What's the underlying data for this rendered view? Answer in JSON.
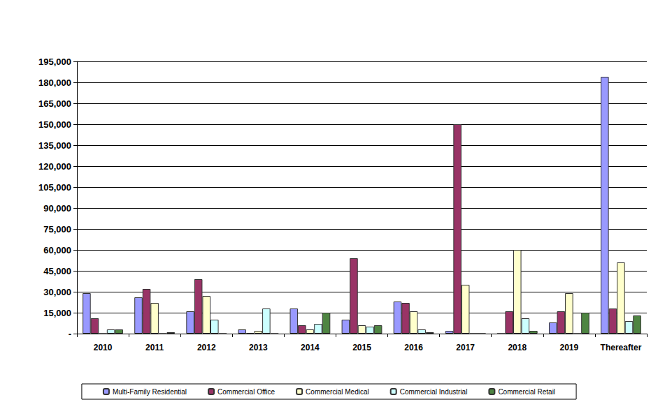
{
  "chart_data": {
    "type": "bar",
    "categories": [
      "2010",
      "2011",
      "2012",
      "2013",
      "2014",
      "2015",
      "2016",
      "2017",
      "2018",
      "2019",
      "Thereafter"
    ],
    "series": [
      {
        "name": "Multi-Family Residential",
        "color": "#9999ff",
        "values": [
          29000,
          26000,
          16000,
          3000,
          18000,
          10000,
          23000,
          2000,
          0,
          8000,
          184000
        ]
      },
      {
        "name": "Commercial Office",
        "color": "#993366",
        "values": [
          11000,
          32000,
          39000,
          500,
          6000,
          54000,
          22000,
          150000,
          16000,
          16000,
          18000
        ]
      },
      {
        "name": "Commercial Medical",
        "color": "#ffffcc",
        "values": [
          0,
          22000,
          27000,
          2000,
          3000,
          6000,
          16000,
          35000,
          60000,
          29000,
          51000
        ]
      },
      {
        "name": "Commercial Industrial",
        "color": "#ccffff",
        "values": [
          3000,
          0,
          10000,
          18000,
          7000,
          5000,
          3000,
          0,
          11000,
          0,
          9000
        ]
      },
      {
        "name": "Commercial Retail",
        "color": "#4e8542",
        "values": [
          3000,
          1000,
          0,
          0,
          15000,
          6000,
          1000,
          0,
          2000,
          15000,
          13000
        ]
      }
    ],
    "ylim": [
      0,
      195000
    ],
    "yticks": [
      {
        "value": 0,
        "label": "-"
      },
      {
        "value": 15000,
        "label": "15,000"
      },
      {
        "value": 30000,
        "label": "30,000"
      },
      {
        "value": 45000,
        "label": "45,000"
      },
      {
        "value": 60000,
        "label": "60,000"
      },
      {
        "value": 75000,
        "label": "75,000"
      },
      {
        "value": 90000,
        "label": "90,000"
      },
      {
        "value": 105000,
        "label": "105,000"
      },
      {
        "value": 120000,
        "label": "120,000"
      },
      {
        "value": 135000,
        "label": "135,000"
      },
      {
        "value": 150000,
        "label": "150,000"
      },
      {
        "value": 165000,
        "label": "165,000"
      },
      {
        "value": 180000,
        "label": "180,000"
      },
      {
        "value": 195000,
        "label": "195,000"
      }
    ],
    "grid": true,
    "legend": "bottom"
  }
}
